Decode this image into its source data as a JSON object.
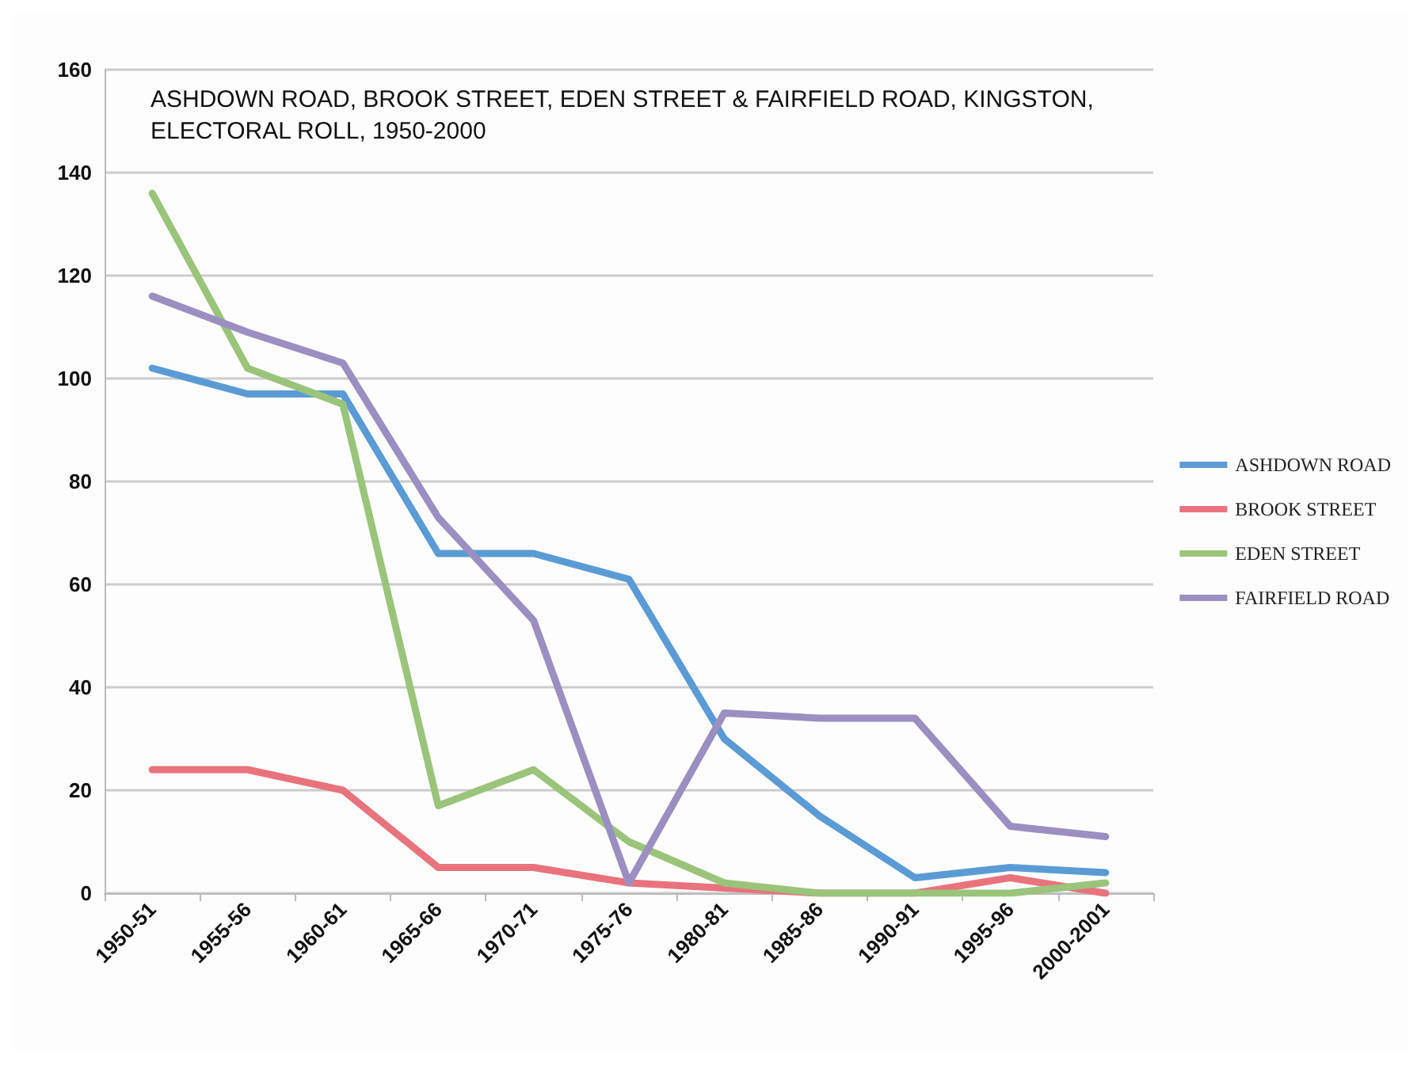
{
  "chart_data": {
    "type": "line",
    "title": "ASHDOWN ROAD, BROOK STREET, EDEN STREET & FAIRFIELD ROAD, KINGSTON,\nELECTORAL ROLL, 1950-2000",
    "categories": [
      "1950-51",
      "1955-56",
      "1960-61",
      "1965-66",
      "1970-71",
      "1975-76",
      "1980-81",
      "1985-86",
      "1990-91",
      "1995-96",
      "2000-2001"
    ],
    "series": [
      {
        "name": "ASHDOWN ROAD",
        "color": "#5b9bd5",
        "values": [
          102,
          97,
          97,
          66,
          66,
          61,
          30,
          15,
          3,
          5,
          4
        ]
      },
      {
        "name": "BROOK STREET",
        "color": "#e8737c",
        "values": [
          24,
          24,
          20,
          5,
          5,
          2,
          1,
          0,
          0,
          3,
          0
        ]
      },
      {
        "name": "EDEN STREET",
        "color": "#9ac47a",
        "values": [
          136,
          102,
          95,
          17,
          24,
          10,
          2,
          0,
          0,
          0,
          2
        ]
      },
      {
        "name": "FAIRFIELD ROAD",
        "color": "#9a8fc0",
        "values": [
          116,
          109,
          103,
          73,
          53,
          2,
          35,
          34,
          34,
          13,
          11
        ]
      }
    ],
    "ylim": [
      0,
      160
    ],
    "yticks": [
      0,
      20,
      40,
      60,
      80,
      100,
      120,
      140,
      160
    ],
    "grid": "y",
    "legend": "right",
    "marker": "none",
    "line_style": "solid"
  }
}
